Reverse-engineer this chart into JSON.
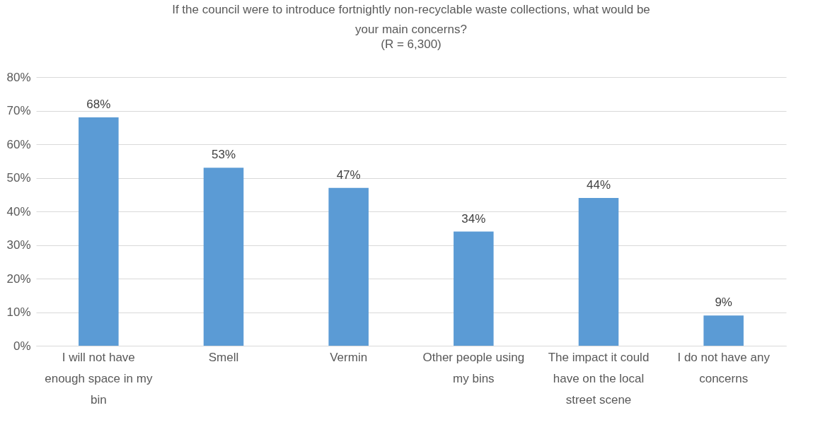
{
  "chart_data": {
    "type": "bar",
    "title": "If the council were to introduce fortnightly non-recyclable waste collections, what would be your main concerns?",
    "subtitle": "(R = 6,300)",
    "categories": [
      "I will not have enough space in my bin",
      "Smell",
      "Vermin",
      "Other people using my bins",
      "The impact it could have on the local street scene",
      "I do not have any concerns"
    ],
    "values": [
      68,
      53,
      47,
      34,
      44,
      9
    ],
    "value_labels": [
      "68%",
      "53%",
      "47%",
      "34%",
      "44%",
      "9%"
    ],
    "color": "#5b9bd5",
    "ylim": [
      0,
      80
    ],
    "yticks": [
      {
        "value": 0,
        "label": "0%"
      },
      {
        "value": 10,
        "label": "10%"
      },
      {
        "value": 20,
        "label": "20%"
      },
      {
        "value": 30,
        "label": "30%"
      },
      {
        "value": 40,
        "label": "40%"
      },
      {
        "value": 50,
        "label": "50%"
      },
      {
        "value": 60,
        "label": "60%"
      },
      {
        "value": 70,
        "label": "70%"
      },
      {
        "value": 80,
        "label": "80%"
      }
    ],
    "grid": "y"
  }
}
